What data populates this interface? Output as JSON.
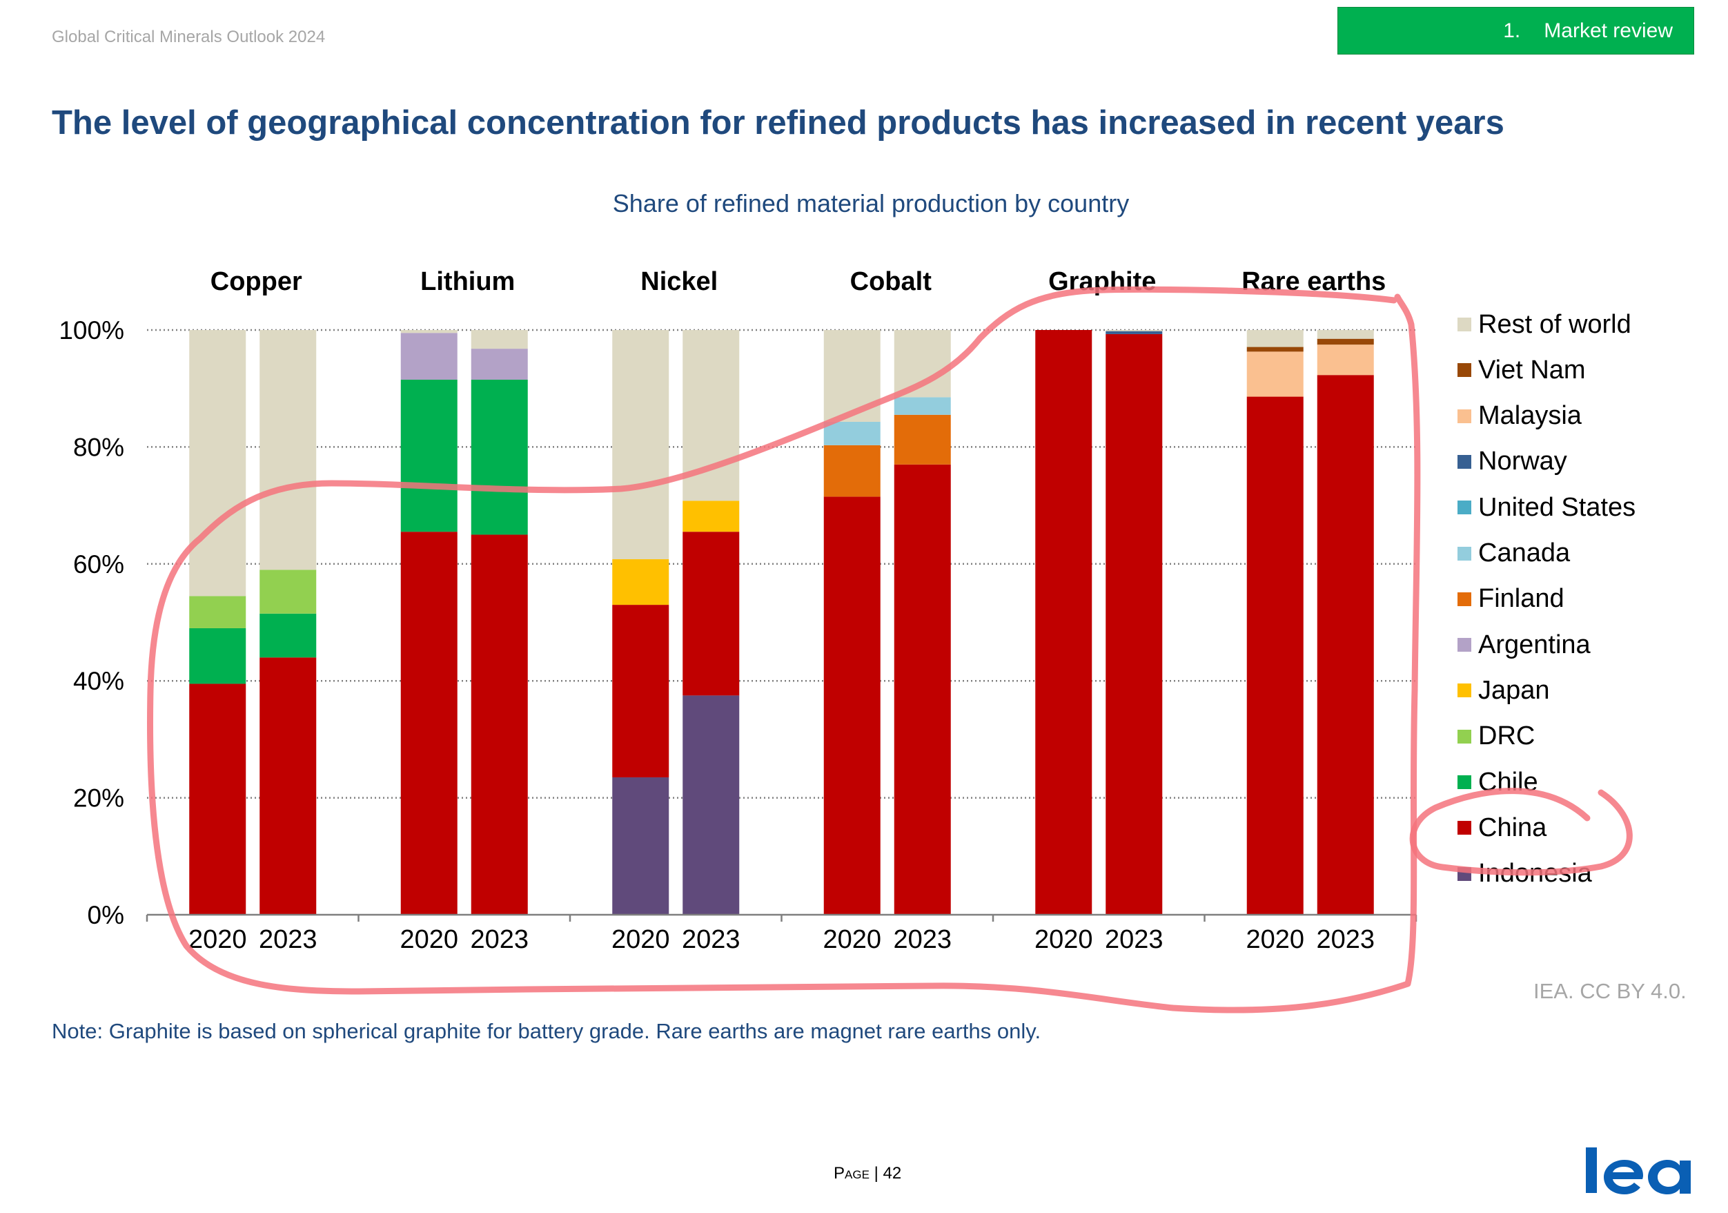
{
  "header": {
    "publication": "Global Critical Minerals Outlook 2024",
    "section_number": "1.",
    "section_title": "Market review"
  },
  "headline": "The level of geographical concentration for refined products has increased in recent years",
  "footer": {
    "credit": "IEA. CC BY 4.0.",
    "note": "Note: Graphite is based on spherical graphite for battery grade. Rare earths are magnet rare earths only.",
    "page_word": "Page",
    "page_separator": " | ",
    "page_number": "42",
    "logo_text": "iea",
    "logo_color": "#0a5fb4"
  },
  "chart_data": {
    "type": "bar",
    "stacked": true,
    "title": "Share of refined material production by country",
    "groups": [
      "Copper",
      "Lithium",
      "Nickel",
      "Cobalt",
      "Graphite",
      "Rare earths"
    ],
    "categories": [
      "2020",
      "2023"
    ],
    "ylim": [
      0,
      100
    ],
    "yticks": [
      "0%",
      "20%",
      "40%",
      "60%",
      "80%",
      "100%"
    ],
    "grid": true,
    "legend_position": "right",
    "series": [
      {
        "name": "Indonesia",
        "color": "#604a7b",
        "values": [
          [
            0,
            0
          ],
          [
            0,
            0
          ],
          [
            23.5,
            37.5
          ],
          [
            0,
            0
          ],
          [
            0,
            0
          ],
          [
            0,
            0
          ]
        ]
      },
      {
        "name": "China",
        "color": "#c00000",
        "values": [
          [
            39.5,
            44
          ],
          [
            65.5,
            65
          ],
          [
            29.5,
            28
          ],
          [
            71.5,
            77
          ],
          [
            100,
            99.3
          ],
          [
            88.6,
            92.3
          ]
        ]
      },
      {
        "name": "Chile",
        "color": "#00b050",
        "values": [
          [
            9.5,
            7.5
          ],
          [
            26,
            26.5
          ],
          [
            0,
            0
          ],
          [
            0,
            0
          ],
          [
            0,
            0
          ],
          [
            0,
            0
          ]
        ]
      },
      {
        "name": "DRC",
        "color": "#92d050",
        "values": [
          [
            5.5,
            7.5
          ],
          [
            0,
            0
          ],
          [
            0,
            0
          ],
          [
            0,
            0
          ],
          [
            0,
            0
          ],
          [
            0,
            0
          ]
        ]
      },
      {
        "name": "Japan",
        "color": "#ffc000",
        "values": [
          [
            0,
            0
          ],
          [
            0,
            0
          ],
          [
            7.8,
            5.3
          ],
          [
            0,
            0
          ],
          [
            0,
            0
          ],
          [
            0,
            0
          ]
        ]
      },
      {
        "name": "Argentina",
        "color": "#b3a2c7",
        "values": [
          [
            0,
            0
          ],
          [
            8,
            5.3
          ],
          [
            0,
            0
          ],
          [
            0,
            0
          ],
          [
            0,
            0
          ],
          [
            0,
            0
          ]
        ]
      },
      {
        "name": "Finland",
        "color": "#e36c09",
        "values": [
          [
            0,
            0
          ],
          [
            0,
            0
          ],
          [
            0,
            0
          ],
          [
            8.8,
            8.5
          ],
          [
            0,
            0
          ],
          [
            0,
            0
          ]
        ]
      },
      {
        "name": "Canada",
        "color": "#93cddd",
        "values": [
          [
            0,
            0
          ],
          [
            0,
            0
          ],
          [
            0,
            0
          ],
          [
            4,
            3
          ],
          [
            0,
            0
          ],
          [
            0,
            0
          ]
        ]
      },
      {
        "name": "United States",
        "color": "#4bacc6",
        "values": [
          [
            0,
            0
          ],
          [
            0,
            0
          ],
          [
            0,
            0
          ],
          [
            0,
            0
          ],
          [
            0,
            0
          ],
          [
            0,
            0
          ]
        ]
      },
      {
        "name": "Norway",
        "color": "#376092",
        "values": [
          [
            0,
            0
          ],
          [
            0,
            0
          ],
          [
            0,
            0
          ],
          [
            0,
            0
          ],
          [
            0,
            0.5
          ],
          [
            0,
            0
          ]
        ]
      },
      {
        "name": "Malaysia",
        "color": "#fac090",
        "values": [
          [
            0,
            0
          ],
          [
            0,
            0
          ],
          [
            0,
            0
          ],
          [
            0,
            0
          ],
          [
            0,
            0
          ],
          [
            7.7,
            5.2
          ]
        ]
      },
      {
        "name": "Viet Nam",
        "color": "#984807",
        "values": [
          [
            0,
            0
          ],
          [
            0,
            0
          ],
          [
            0,
            0
          ],
          [
            0,
            0
          ],
          [
            0,
            0
          ],
          [
            0.8,
            1
          ]
        ]
      },
      {
        "name": "Rest of world",
        "color": "#ddd9c3",
        "values": [
          [
            45.5,
            41
          ],
          [
            0.5,
            3.2
          ],
          [
            39.2,
            29.2
          ],
          [
            15.7,
            11.5
          ],
          [
            0,
            0.2
          ],
          [
            2.9,
            1.5
          ]
        ]
      }
    ],
    "legend_order": [
      "Rest of world",
      "Viet Nam",
      "Malaysia",
      "Norway",
      "United States",
      "Canada",
      "Finland",
      "Argentina",
      "Japan",
      "DRC",
      "Chile",
      "China",
      "Indonesia"
    ]
  },
  "annotation": {
    "description": "",
    "color": "#f4737d"
  }
}
